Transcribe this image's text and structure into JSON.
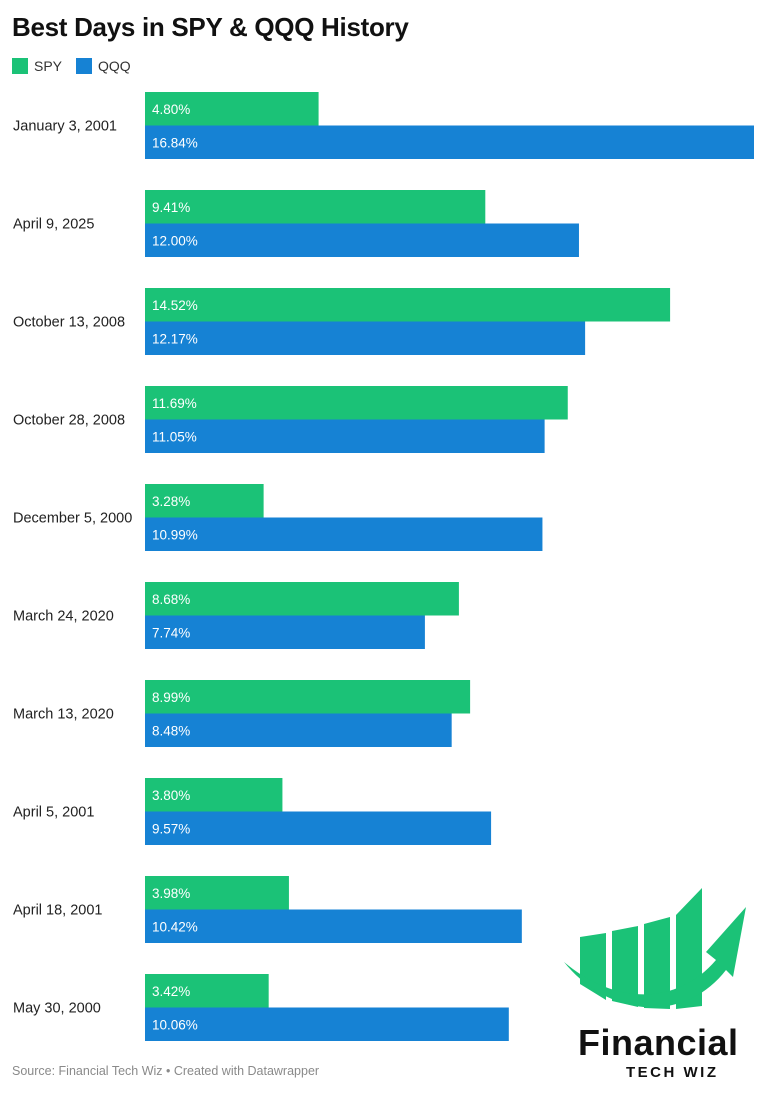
{
  "chart_data": {
    "type": "bar",
    "orientation": "horizontal",
    "title": "Best Days in SPY & QQQ History",
    "categories": [
      "January 3, 2001",
      "April 9, 2025",
      "October 13, 2008",
      "October 28, 2008",
      "December 5, 2000",
      "March 24, 2020",
      "March 13, 2020",
      "April 5, 2001",
      "April 18, 2001",
      "May 30, 2000"
    ],
    "series": [
      {
        "name": "SPY",
        "color": "#1bc277",
        "values": [
          4.8,
          9.41,
          14.52,
          11.69,
          3.28,
          8.68,
          8.99,
          3.8,
          3.98,
          3.42
        ]
      },
      {
        "name": "QQQ",
        "color": "#1682d4",
        "values": [
          16.84,
          12.0,
          12.17,
          11.05,
          10.99,
          7.74,
          8.48,
          9.57,
          10.42,
          10.06
        ]
      }
    ],
    "value_format": "percent_2dp",
    "xlim": [
      0,
      16.84
    ],
    "grid": false,
    "legend": "top-left",
    "data_labels": "inside-left"
  },
  "footer": {
    "source": "Source: Financial Tech Wiz • Created with Datawrapper"
  },
  "logo": {
    "word": "Financial",
    "sub": "TECH WIZ",
    "color": "#1bc277"
  }
}
